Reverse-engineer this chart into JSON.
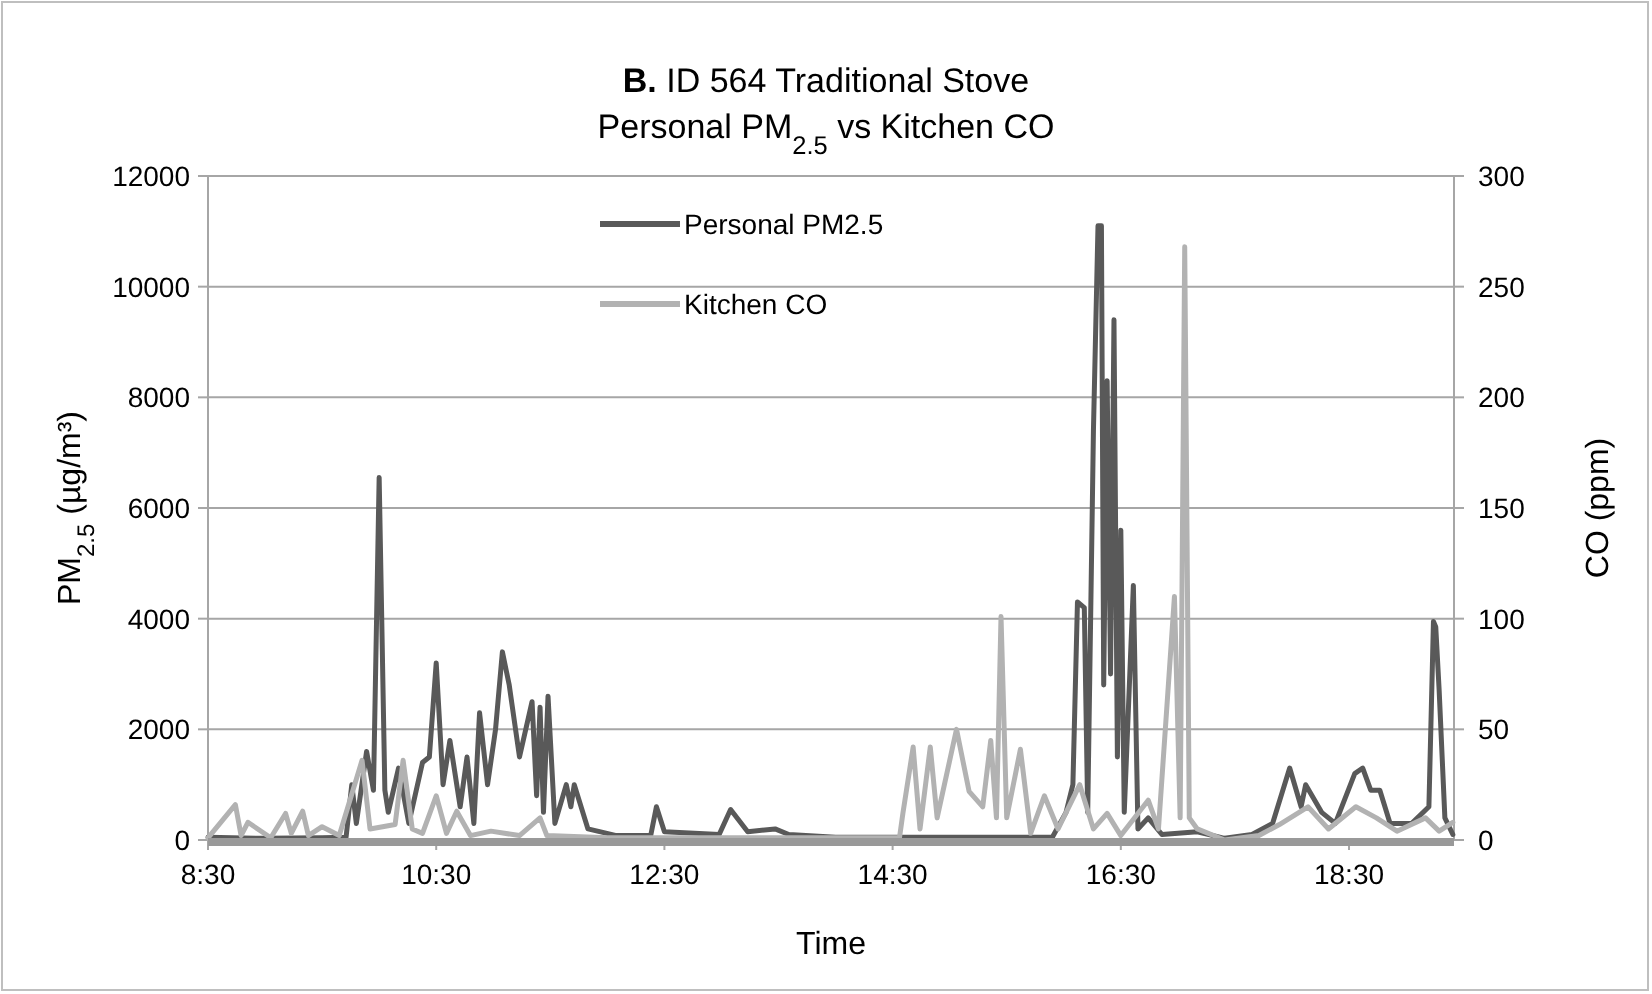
{
  "chart_data": {
    "type": "line",
    "title": "B. ID 564 Traditional Stove",
    "subtitle": "Personal PM$_{2.5}$ vs Kitchen CO",
    "xlabel": "Time",
    "ylabel": "PM$_{2.5}$ (µg/m³)",
    "y2label": "CO (ppm)",
    "xlim": [
      8.5,
      19.42
    ],
    "xticks": [
      {
        "value": 8.5,
        "label": "8:30"
      },
      {
        "value": 10.5,
        "label": "10:30"
      },
      {
        "value": 12.5,
        "label": "12:30"
      },
      {
        "value": 14.5,
        "label": "14:30"
      },
      {
        "value": 16.5,
        "label": "16:30"
      },
      {
        "value": 18.5,
        "label": "18:30"
      }
    ],
    "ylim": [
      0,
      12000
    ],
    "yticks": [
      0,
      2000,
      4000,
      6000,
      8000,
      10000,
      12000
    ],
    "y2lim": [
      0,
      300
    ],
    "y2ticks": [
      0,
      50,
      100,
      150,
      200,
      250,
      300
    ],
    "grid": "y",
    "legend": "top",
    "line_style": "solid",
    "series": [
      {
        "name": "Personal PM2.5",
        "color": "#595959",
        "x": [
          8.5,
          9.0,
          9.5,
          9.71,
          9.76,
          9.8,
          9.89,
          9.95,
          10.0,
          10.05,
          10.08,
          10.17,
          10.26,
          10.38,
          10.44,
          10.5,
          10.56,
          10.62,
          10.71,
          10.77,
          10.83,
          10.88,
          10.95,
          11.02,
          11.08,
          11.14,
          11.23,
          11.34,
          11.38,
          11.41,
          11.44,
          11.48,
          11.54,
          11.64,
          11.68,
          11.71,
          11.83,
          12.08,
          12.38,
          12.43,
          12.5,
          12.98,
          13.08,
          13.23,
          13.47,
          13.59,
          14.0,
          14.5,
          15.0,
          15.5,
          15.9,
          16.02,
          16.08,
          16.12,
          16.18,
          16.21,
          16.26,
          16.3,
          16.33,
          16.35,
          16.38,
          16.41,
          16.44,
          16.47,
          16.5,
          16.53,
          16.61,
          16.65,
          16.74,
          16.86,
          17.17,
          17.41,
          17.65,
          17.83,
          17.98,
          18.08,
          18.12,
          18.26,
          18.38,
          18.55,
          18.62,
          18.69,
          18.77,
          18.86,
          19.05,
          19.2,
          19.24,
          19.26,
          19.29,
          19.34,
          19.41
        ],
        "values": [
          50,
          30,
          40,
          50,
          1000,
          300,
          1600,
          900,
          6550,
          900,
          500,
          1300,
          300,
          1400,
          1500,
          3200,
          1000,
          1800,
          600,
          1500,
          300,
          2300,
          1000,
          2000,
          3400,
          2800,
          1500,
          2500,
          800,
          2400,
          500,
          2600,
          300,
          1000,
          600,
          1000,
          200,
          80,
          80,
          600,
          150,
          100,
          550,
          150,
          200,
          100,
          50,
          50,
          50,
          50,
          50,
          500,
          1000,
          4300,
          4200,
          500,
          7400,
          11100,
          11100,
          2800,
          8300,
          3000,
          9400,
          1500,
          5600,
          500,
          4600,
          200,
          400,
          100,
          150,
          30,
          100,
          300,
          1300,
          600,
          1000,
          500,
          300,
          1200,
          1300,
          900,
          900,
          300,
          300,
          600,
          3950,
          3850,
          2700,
          400,
          100
        ]
      },
      {
        "name": "Kitchen CO",
        "color": "#b2b2b2",
        "axis": "y2",
        "x": [
          8.5,
          8.74,
          8.79,
          8.85,
          9.05,
          9.18,
          9.23,
          9.33,
          9.38,
          9.5,
          9.65,
          9.85,
          9.92,
          10.14,
          10.21,
          10.29,
          10.38,
          10.5,
          10.59,
          10.68,
          10.8,
          10.98,
          11.23,
          11.41,
          11.47,
          12.0,
          13.0,
          14.0,
          14.56,
          14.59,
          14.68,
          14.74,
          14.83,
          14.89,
          15.06,
          15.17,
          15.29,
          15.36,
          15.41,
          15.45,
          15.5,
          15.62,
          15.71,
          15.83,
          15.95,
          16.14,
          16.26,
          16.38,
          16.5,
          16.74,
          16.83,
          16.97,
          17.02,
          17.06,
          17.1,
          17.17,
          17.41,
          17.71,
          17.89,
          18.14,
          18.32,
          18.56,
          18.74,
          18.92,
          19.17,
          19.29,
          19.41
        ],
        "values": [
          1,
          16,
          2,
          8,
          1,
          12,
          3,
          13,
          2,
          6,
          2,
          36,
          5,
          7,
          36,
          5,
          3,
          20,
          3,
          13,
          2,
          4,
          2,
          10,
          2,
          1,
          1,
          1,
          1,
          12,
          42,
          5,
          42,
          10,
          50,
          22,
          15,
          45,
          10,
          101,
          10,
          41,
          3,
          20,
          5,
          25,
          5,
          12,
          2,
          18,
          5,
          110,
          10,
          268,
          10,
          5,
          0,
          2,
          7,
          15,
          5,
          15,
          10,
          4,
          10,
          4,
          8
        ]
      }
    ]
  }
}
